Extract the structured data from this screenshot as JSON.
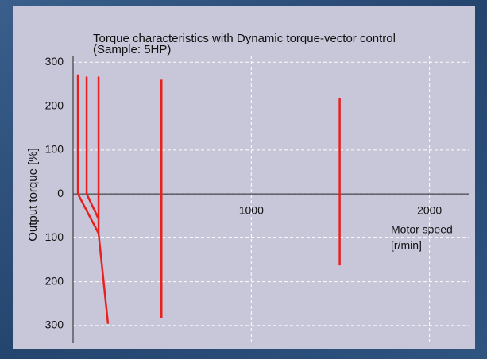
{
  "chart_data": {
    "type": "line",
    "title": [
      "Torque characteristics with Dynamic torque-vector control",
      "(Sample: 5HP)"
    ],
    "y_label": "Output torque [%]",
    "x_label": [
      "Motor speed",
      "[r/min]"
    ],
    "xlim": [
      0,
      2220
    ],
    "xticks": [
      1000,
      2000
    ],
    "ylim": [
      -340,
      315
    ],
    "yticks": [
      300,
      200,
      100,
      0,
      {
        "value": -100,
        "label": "100"
      },
      {
        "value": -200,
        "label": "200"
      },
      {
        "value": -300,
        "label": "300"
      }
    ],
    "grid": true,
    "series": [
      {
        "color": "#e8201e",
        "x": [
          27,
          27,
          143
        ],
        "values": [
          272,
          0,
          -90
        ]
      },
      {
        "color": "#e8201e",
        "x": [
          76,
          76,
          143
        ],
        "values": [
          267,
          0,
          -57
        ]
      },
      {
        "color": "#e8201e",
        "x": [
          143,
          143,
          196
        ],
        "values": [
          267,
          -90,
          -296
        ]
      },
      {
        "color": "#e8201e",
        "x": [
          496,
          496
        ],
        "values": [
          260,
          -282
        ]
      },
      {
        "color": "#e8201e",
        "x": [
          1496,
          1496
        ],
        "values": [
          219,
          -163
        ]
      }
    ]
  }
}
